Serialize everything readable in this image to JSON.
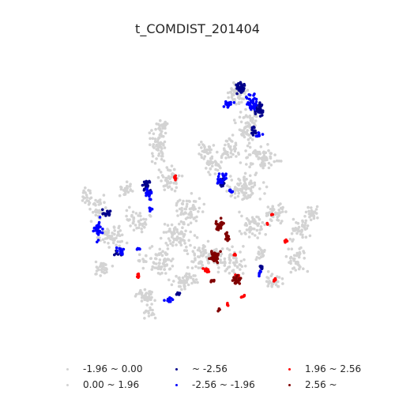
{
  "title": "t_COMDIST_201404",
  "colors": {
    "neg_196_0": "#d3d3d3",
    "pos_0_196": "#d3d3d3",
    "lt_neg_256": "#00008b",
    "neg_256_196": "#0000ff",
    "pos_196_256": "#ff0000",
    "gt_256": "#800000"
  },
  "legend": [
    {
      "label": "-1.96 ~ 0.00",
      "color": "#d3d3d3"
    },
    {
      "label": "0.00 ~ 1.96",
      "color": "#d3d3d3"
    },
    {
      "label": "~ -2.56",
      "color": "#00008b"
    },
    {
      "label": "-2.56 ~ -1.96",
      "color": "#0000ff"
    },
    {
      "label": "1.96 ~ 2.56",
      "color": "#ff0000"
    },
    {
      "label": "2.56 ~",
      "color": "#800000"
    }
  ]
}
